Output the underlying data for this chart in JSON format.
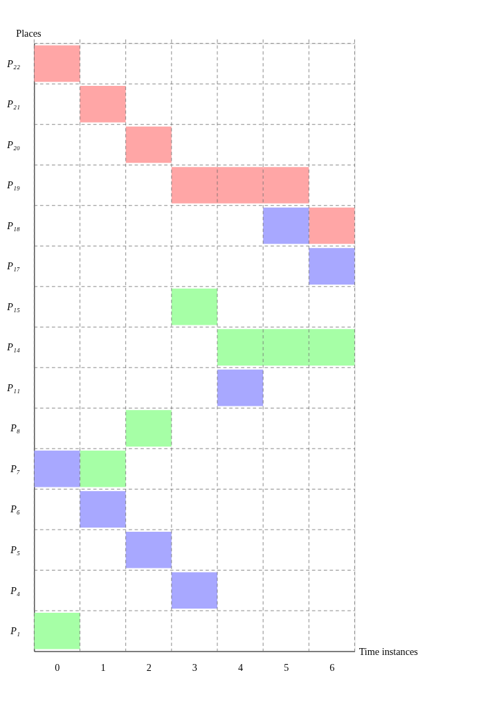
{
  "chart_data": {
    "type": "bar",
    "orientation": "horizontal",
    "xlabel": "Time instances",
    "ylabel": "Places",
    "categories": [
      "P₂₂",
      "P₂₁",
      "P₂₀",
      "P₁₉",
      "P₁₈",
      "P₁₇",
      "P₁₅",
      "P₁₄",
      "P₁₁",
      "P₈",
      "P₇",
      "P₆",
      "P₅",
      "P₄",
      "P₁"
    ],
    "xlim": [
      -0.5,
      6.5
    ],
    "xticks": [
      0,
      1,
      2,
      3,
      4,
      5,
      6
    ],
    "grid": true,
    "legend": false,
    "series": [
      {
        "color": "#ffa6a6",
        "values": [
          1,
          1,
          1,
          1,
          1,
          null,
          null,
          null,
          null,
          null,
          null,
          null,
          null,
          null,
          null
        ],
        "base": [
          -0.5,
          0.5,
          1.5,
          2.5,
          5.5,
          null,
          null,
          null,
          null,
          null,
          null,
          null,
          null,
          null,
          null
        ]
      },
      {
        "color": "#ffa6a6",
        "values": [
          null,
          null,
          null,
          1,
          null,
          null,
          null,
          null,
          null,
          null,
          null,
          null,
          null,
          null,
          null
        ],
        "base": [
          null,
          null,
          null,
          3.5,
          null,
          null,
          null,
          null,
          null,
          null,
          null,
          null,
          null,
          null,
          null
        ]
      },
      {
        "color": "#ffa6a6",
        "values": [
          null,
          null,
          null,
          1,
          null,
          null,
          null,
          null,
          null,
          null,
          null,
          null,
          null,
          null,
          null
        ],
        "base": [
          null,
          null,
          null,
          4.5,
          null,
          null,
          null,
          null,
          null,
          null,
          null,
          null,
          null,
          null,
          null
        ]
      },
      {
        "color": "#a6ffa6",
        "values": [
          null,
          null,
          null,
          null,
          null,
          null,
          1,
          1,
          null,
          1,
          1,
          null,
          null,
          null,
          1
        ],
        "base": [
          null,
          null,
          null,
          null,
          null,
          null,
          2.5,
          3.5,
          null,
          1.5,
          0.5,
          null,
          null,
          null,
          -0.5
        ]
      },
      {
        "color": "#a6ffa6",
        "values": [
          null,
          null,
          null,
          null,
          null,
          null,
          null,
          1,
          null,
          null,
          null,
          null,
          null,
          null,
          null
        ],
        "base": [
          null,
          null,
          null,
          null,
          null,
          null,
          null,
          4.5,
          null,
          null,
          null,
          null,
          null,
          null,
          null
        ]
      },
      {
        "color": "#a6ffa6",
        "values": [
          null,
          null,
          null,
          null,
          null,
          null,
          null,
          1,
          null,
          null,
          null,
          null,
          null,
          null,
          null
        ],
        "base": [
          null,
          null,
          null,
          null,
          null,
          null,
          null,
          5.5,
          null,
          null,
          null,
          null,
          null,
          null,
          null
        ]
      },
      {
        "color": "#a8a8ff",
        "values": [
          null,
          null,
          null,
          null,
          1,
          1,
          null,
          null,
          1,
          null,
          1,
          1,
          1,
          1,
          null
        ],
        "base": [
          null,
          null,
          null,
          null,
          4.5,
          5.5,
          null,
          null,
          3.5,
          null,
          -0.5,
          0.5,
          1.5,
          2.5,
          null
        ]
      }
    ]
  }
}
